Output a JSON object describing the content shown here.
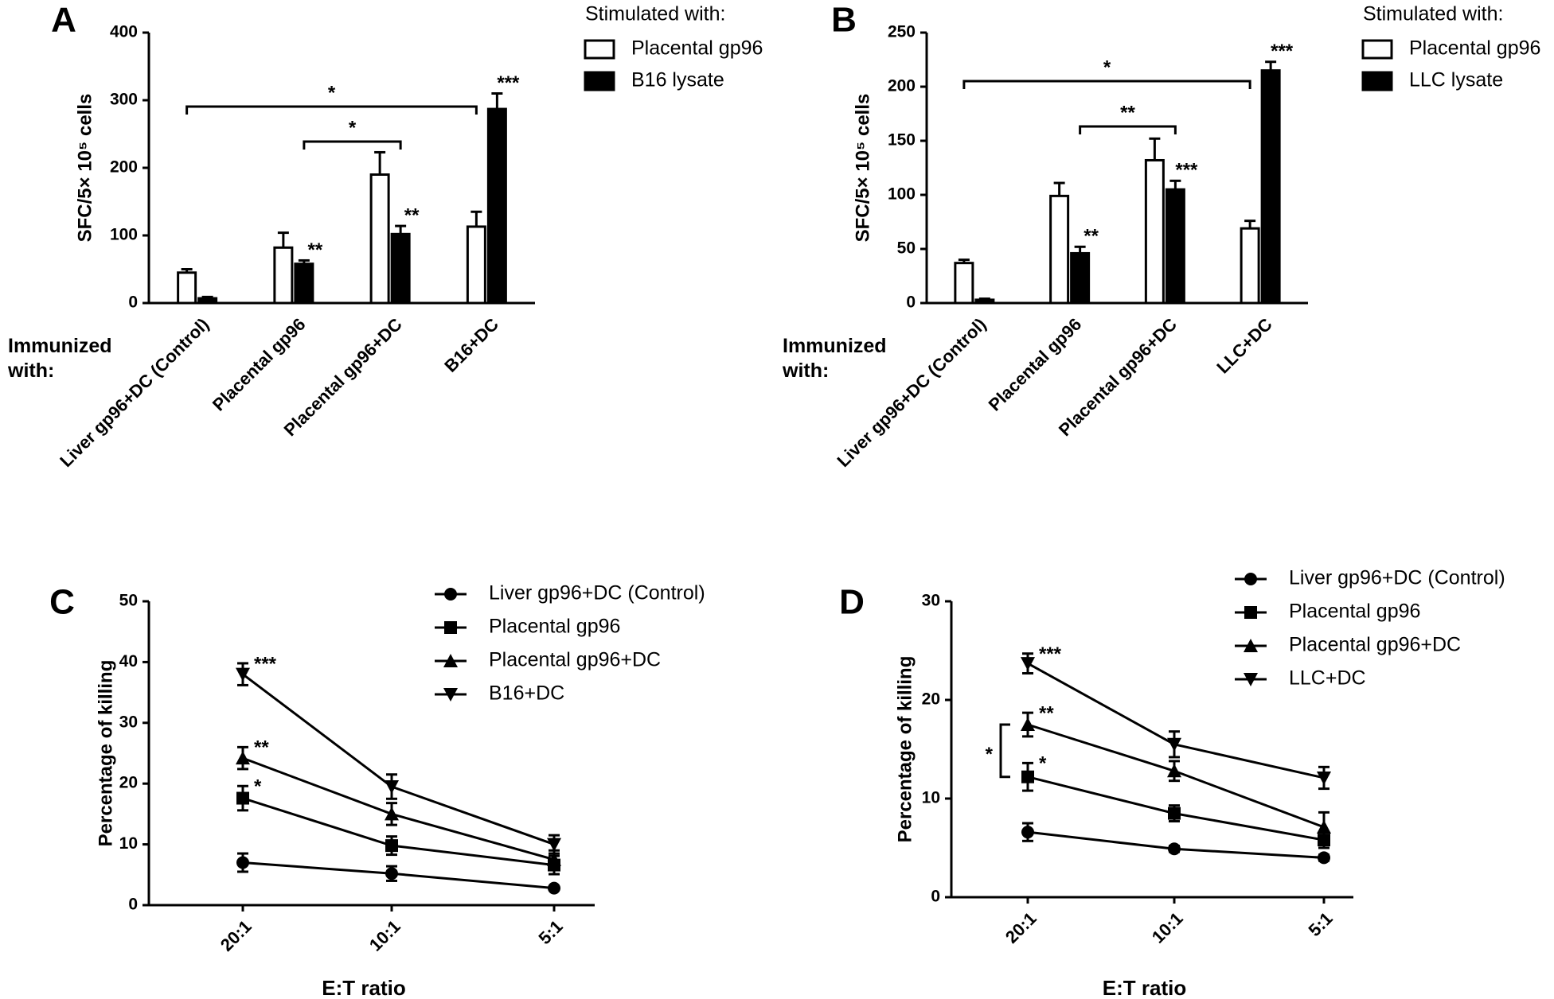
{
  "chart_data": [
    {
      "type": "bar",
      "panel_label": "A",
      "y_label": "SFC/5× 10⁵ cells",
      "x_label": "Immunized with:",
      "legend_title": "Stimulated with:",
      "categories": [
        "Liver gp96+DC (Control)",
        "Placental gp96",
        "Placental gp96+DC",
        "B16+DC"
      ],
      "series": [
        {
          "name": "Placental gp96",
          "color": "#ffffff",
          "values": [
            45,
            82,
            190,
            113
          ],
          "errors": [
            5,
            22,
            33,
            22
          ]
        },
        {
          "name": "B16 lysate",
          "color": "#000000",
          "values": [
            7,
            58,
            102,
            287
          ],
          "errors": [
            2,
            5,
            12,
            23
          ]
        }
      ],
      "ylim": [
        0,
        400
      ],
      "yticks": [
        0,
        100,
        200,
        300,
        400
      ],
      "stars": [
        {
          "label": "**",
          "category": 1,
          "series": 1
        },
        {
          "label": "**",
          "category": 2,
          "series": 1
        },
        {
          "label": "***",
          "category": 3,
          "series": 1
        }
      ],
      "brackets": [
        {
          "label": "*",
          "from": 0,
          "to": 3
        },
        {
          "label": "*",
          "from": 1,
          "to": 2
        }
      ]
    },
    {
      "type": "bar",
      "panel_label": "B",
      "y_label": "SFC/5× 10⁵ cells",
      "x_label": "Immunized with:",
      "legend_title": "Stimulated with:",
      "categories": [
        "Liver gp96+DC (Control)",
        "Placental gp96",
        "Placental gp96+DC",
        "LLC+DC"
      ],
      "series": [
        {
          "name": "Placental gp96",
          "color": "#ffffff",
          "values": [
            37,
            99,
            132,
            69
          ],
          "errors": [
            3,
            12,
            20,
            7
          ]
        },
        {
          "name": "LLC lysate",
          "color": "#000000",
          "values": [
            3,
            46,
            105,
            215
          ],
          "errors": [
            1,
            6,
            8,
            8
          ]
        }
      ],
      "ylim": [
        0,
        250
      ],
      "yticks": [
        0,
        50,
        100,
        150,
        200,
        250
      ],
      "stars": [
        {
          "label": "**",
          "category": 1,
          "series": 1
        },
        {
          "label": "***",
          "category": 2,
          "series": 1
        },
        {
          "label": "***",
          "category": 3,
          "series": 1
        }
      ],
      "brackets": [
        {
          "label": "*",
          "from": 0,
          "to": 3
        },
        {
          "label": "**",
          "from": 1,
          "to": 2
        }
      ]
    },
    {
      "type": "line",
      "panel_label": "C",
      "y_label": "Percentage of killing",
      "x_label": "E:T ratio",
      "categories": [
        "20:1",
        "10:1",
        "5:1"
      ],
      "series": [
        {
          "name": "Liver gp96+DC (Control)",
          "color": "#000000",
          "marker": "circle",
          "values": [
            7,
            5.2,
            2.8
          ],
          "errors": [
            1.5,
            1.2,
            0.3
          ]
        },
        {
          "name": "Placental gp96",
          "color": "#000000",
          "marker": "square",
          "values": [
            17.6,
            9.8,
            6.6
          ],
          "errors": [
            2,
            1.5,
            1.5
          ]
        },
        {
          "name": "Placental gp96+DC",
          "color": "#000000",
          "marker": "triangle-up",
          "values": [
            24.2,
            15,
            7.5
          ],
          "errors": [
            1.8,
            1.8,
            1.5
          ]
        },
        {
          "name": "B16+DC",
          "color": "#000000",
          "marker": "triangle-down",
          "values": [
            38,
            19.5,
            10
          ],
          "errors": [
            1.8,
            2,
            1.5
          ]
        }
      ],
      "ylim": [
        0,
        50
      ],
      "yticks": [
        0,
        10,
        20,
        30,
        40,
        50
      ],
      "stars": [
        {
          "label": "***",
          "category": 0,
          "series": 3
        },
        {
          "label": "**",
          "category": 0,
          "series": 2
        },
        {
          "label": "*",
          "category": 0,
          "series": 1
        }
      ],
      "brackets": []
    },
    {
      "type": "line",
      "panel_label": "D",
      "y_label": "Percentage of killing",
      "x_label": "E:T ratio",
      "categories": [
        "20:1",
        "10:1",
        "5:1"
      ],
      "series": [
        {
          "name": "Liver gp96+DC (Control)",
          "color": "#000000",
          "marker": "circle",
          "values": [
            6.6,
            4.9,
            4
          ],
          "errors": [
            0.9,
            0.3,
            0.3
          ]
        },
        {
          "name": "Placental gp96",
          "color": "#000000",
          "marker": "square",
          "values": [
            12.2,
            8.5,
            5.8
          ],
          "errors": [
            1.4,
            0.8,
            0.8
          ]
        },
        {
          "name": "Placental gp96+DC",
          "color": "#000000",
          "marker": "triangle-up",
          "values": [
            17.5,
            12.8,
            7.1
          ],
          "errors": [
            1.2,
            1,
            1.5
          ]
        },
        {
          "name": "LLC+DC",
          "color": "#000000",
          "marker": "triangle-down",
          "values": [
            23.7,
            15.5,
            12.1
          ],
          "errors": [
            1,
            1.3,
            1.1
          ]
        }
      ],
      "ylim": [
        0,
        30
      ],
      "yticks": [
        0,
        10,
        20,
        30
      ],
      "stars": [
        {
          "label": "***",
          "category": 0,
          "series": 3
        },
        {
          "label": "**",
          "category": 0,
          "series": 2
        },
        {
          "label": "*",
          "category": 0,
          "series": 1
        }
      ],
      "brackets": [
        {
          "label": "*",
          "category": 0,
          "from": 1,
          "to": 2
        }
      ]
    }
  ]
}
